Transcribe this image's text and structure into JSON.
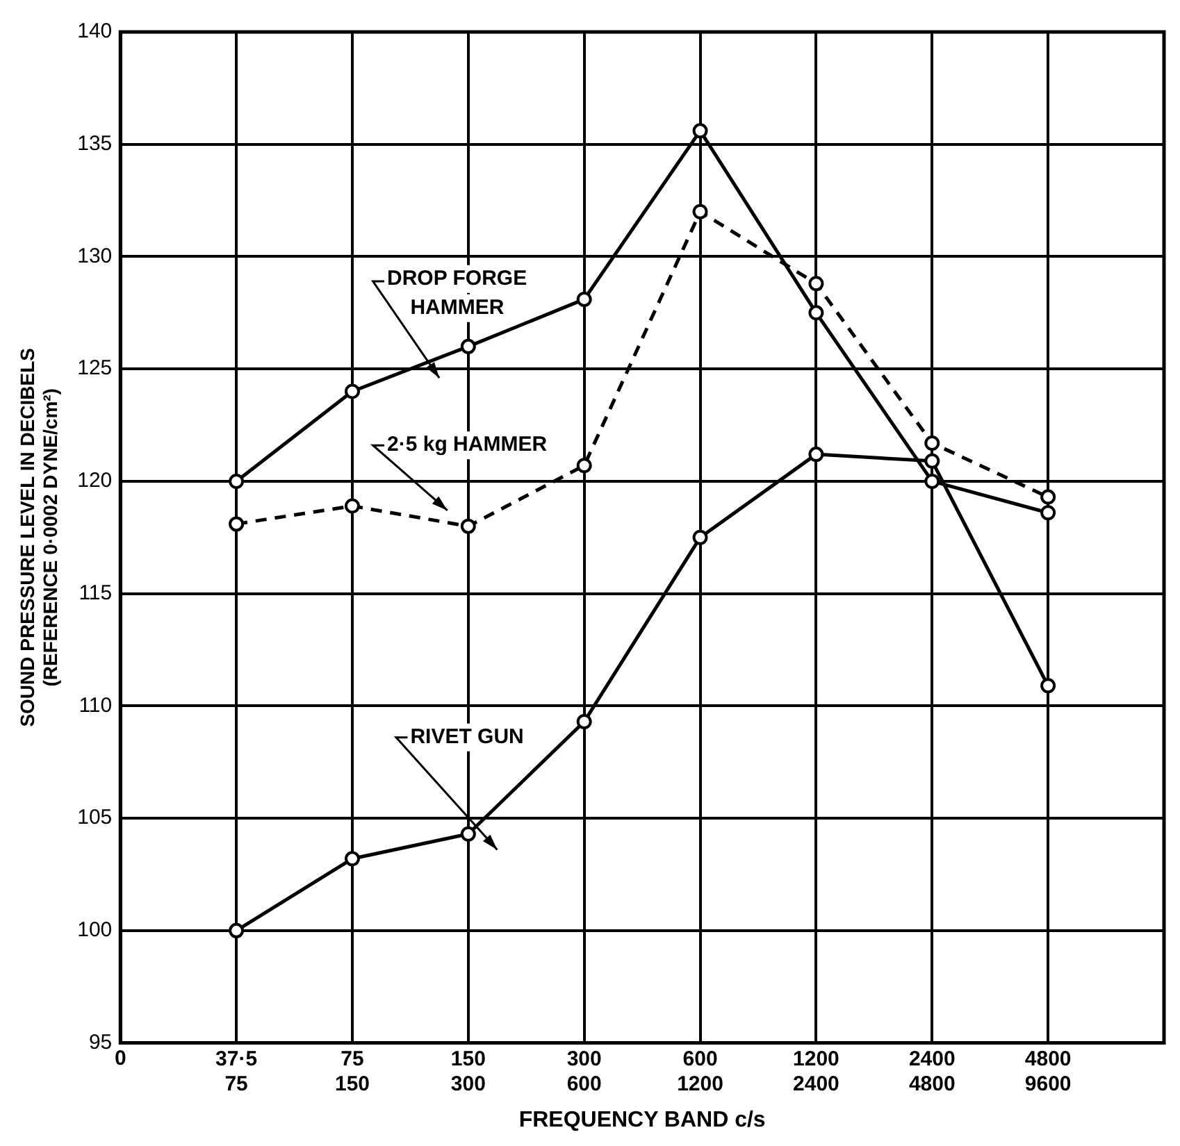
{
  "chart_data": {
    "type": "line",
    "xlabel": "FREQUENCY BAND c/s",
    "ylabel": "SOUND PRESSURE LEVEL IN DECIBELS",
    "annotations": [
      "(REFERENCE 0·0002 DYNE/cm²)",
      "0"
    ],
    "categories": [
      "37·5\n75",
      "75\n150",
      "150\n300",
      "300\n600",
      "600\n1200",
      "1200\n2400",
      "2400\n4800",
      "4800\n9600"
    ],
    "ylim": [
      95,
      140
    ],
    "yticks": [
      95,
      100,
      105,
      110,
      115,
      120,
      125,
      130,
      135,
      140
    ],
    "grid": true,
    "legend": false,
    "marker": "circle",
    "series": [
      {
        "name": "DROP FORGE\nHAMMER",
        "color": "#000000",
        "line_style": "solid",
        "values": [
          120,
          124,
          126,
          128.1,
          135.6,
          127.5,
          120,
          118.6
        ]
      },
      {
        "name": "2·5 kg HAMMER",
        "color": "#000000",
        "line_style": "dashed",
        "values": [
          118.1,
          118.9,
          118,
          120.7,
          132,
          128.8,
          121.7,
          119.3
        ]
      },
      {
        "name": "RIVET GUN",
        "color": "#000000",
        "line_style": "solid",
        "values": [
          100,
          103.2,
          104.3,
          109.3,
          117.5,
          121.2,
          120.9,
          110.9
        ]
      }
    ]
  }
}
